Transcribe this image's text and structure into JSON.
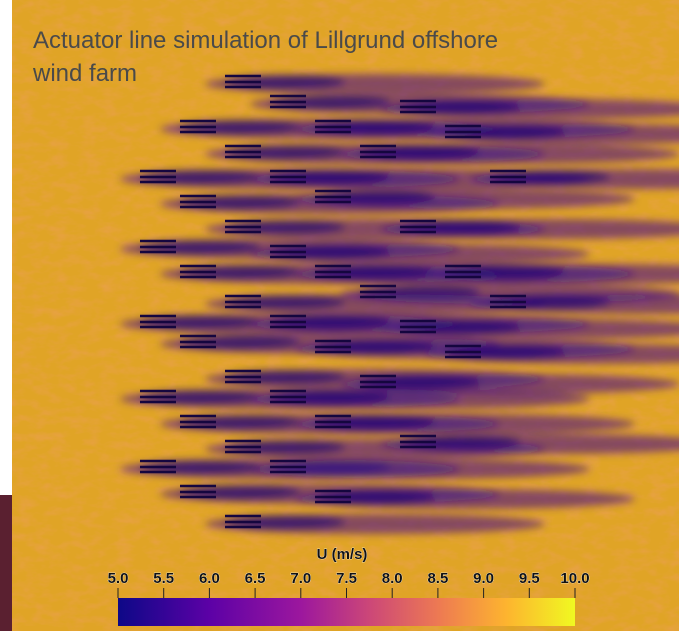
{
  "title": {
    "line1": "Actuator line simulation of Lillgrund offshore",
    "line2": "wind farm"
  },
  "colorbar": {
    "label": "U (m/s)",
    "lim": [
      5,
      10
    ],
    "ticks": [
      {
        "value": 5,
        "label": "5.0"
      },
      {
        "value": 5.5,
        "label": "5.5"
      },
      {
        "value": 6,
        "label": "6.0"
      },
      {
        "value": 6.5,
        "label": "6.5"
      },
      {
        "value": 7,
        "label": "7.0"
      },
      {
        "value": 7.5,
        "label": "7.5"
      },
      {
        "value": 8,
        "label": "8.0"
      },
      {
        "value": 8.5,
        "label": "8.5"
      },
      {
        "value": 9,
        "label": "9.0"
      },
      {
        "value": 9.5,
        "label": "9.5"
      },
      {
        "value": 10,
        "label": "10.0"
      }
    ]
  }
}
